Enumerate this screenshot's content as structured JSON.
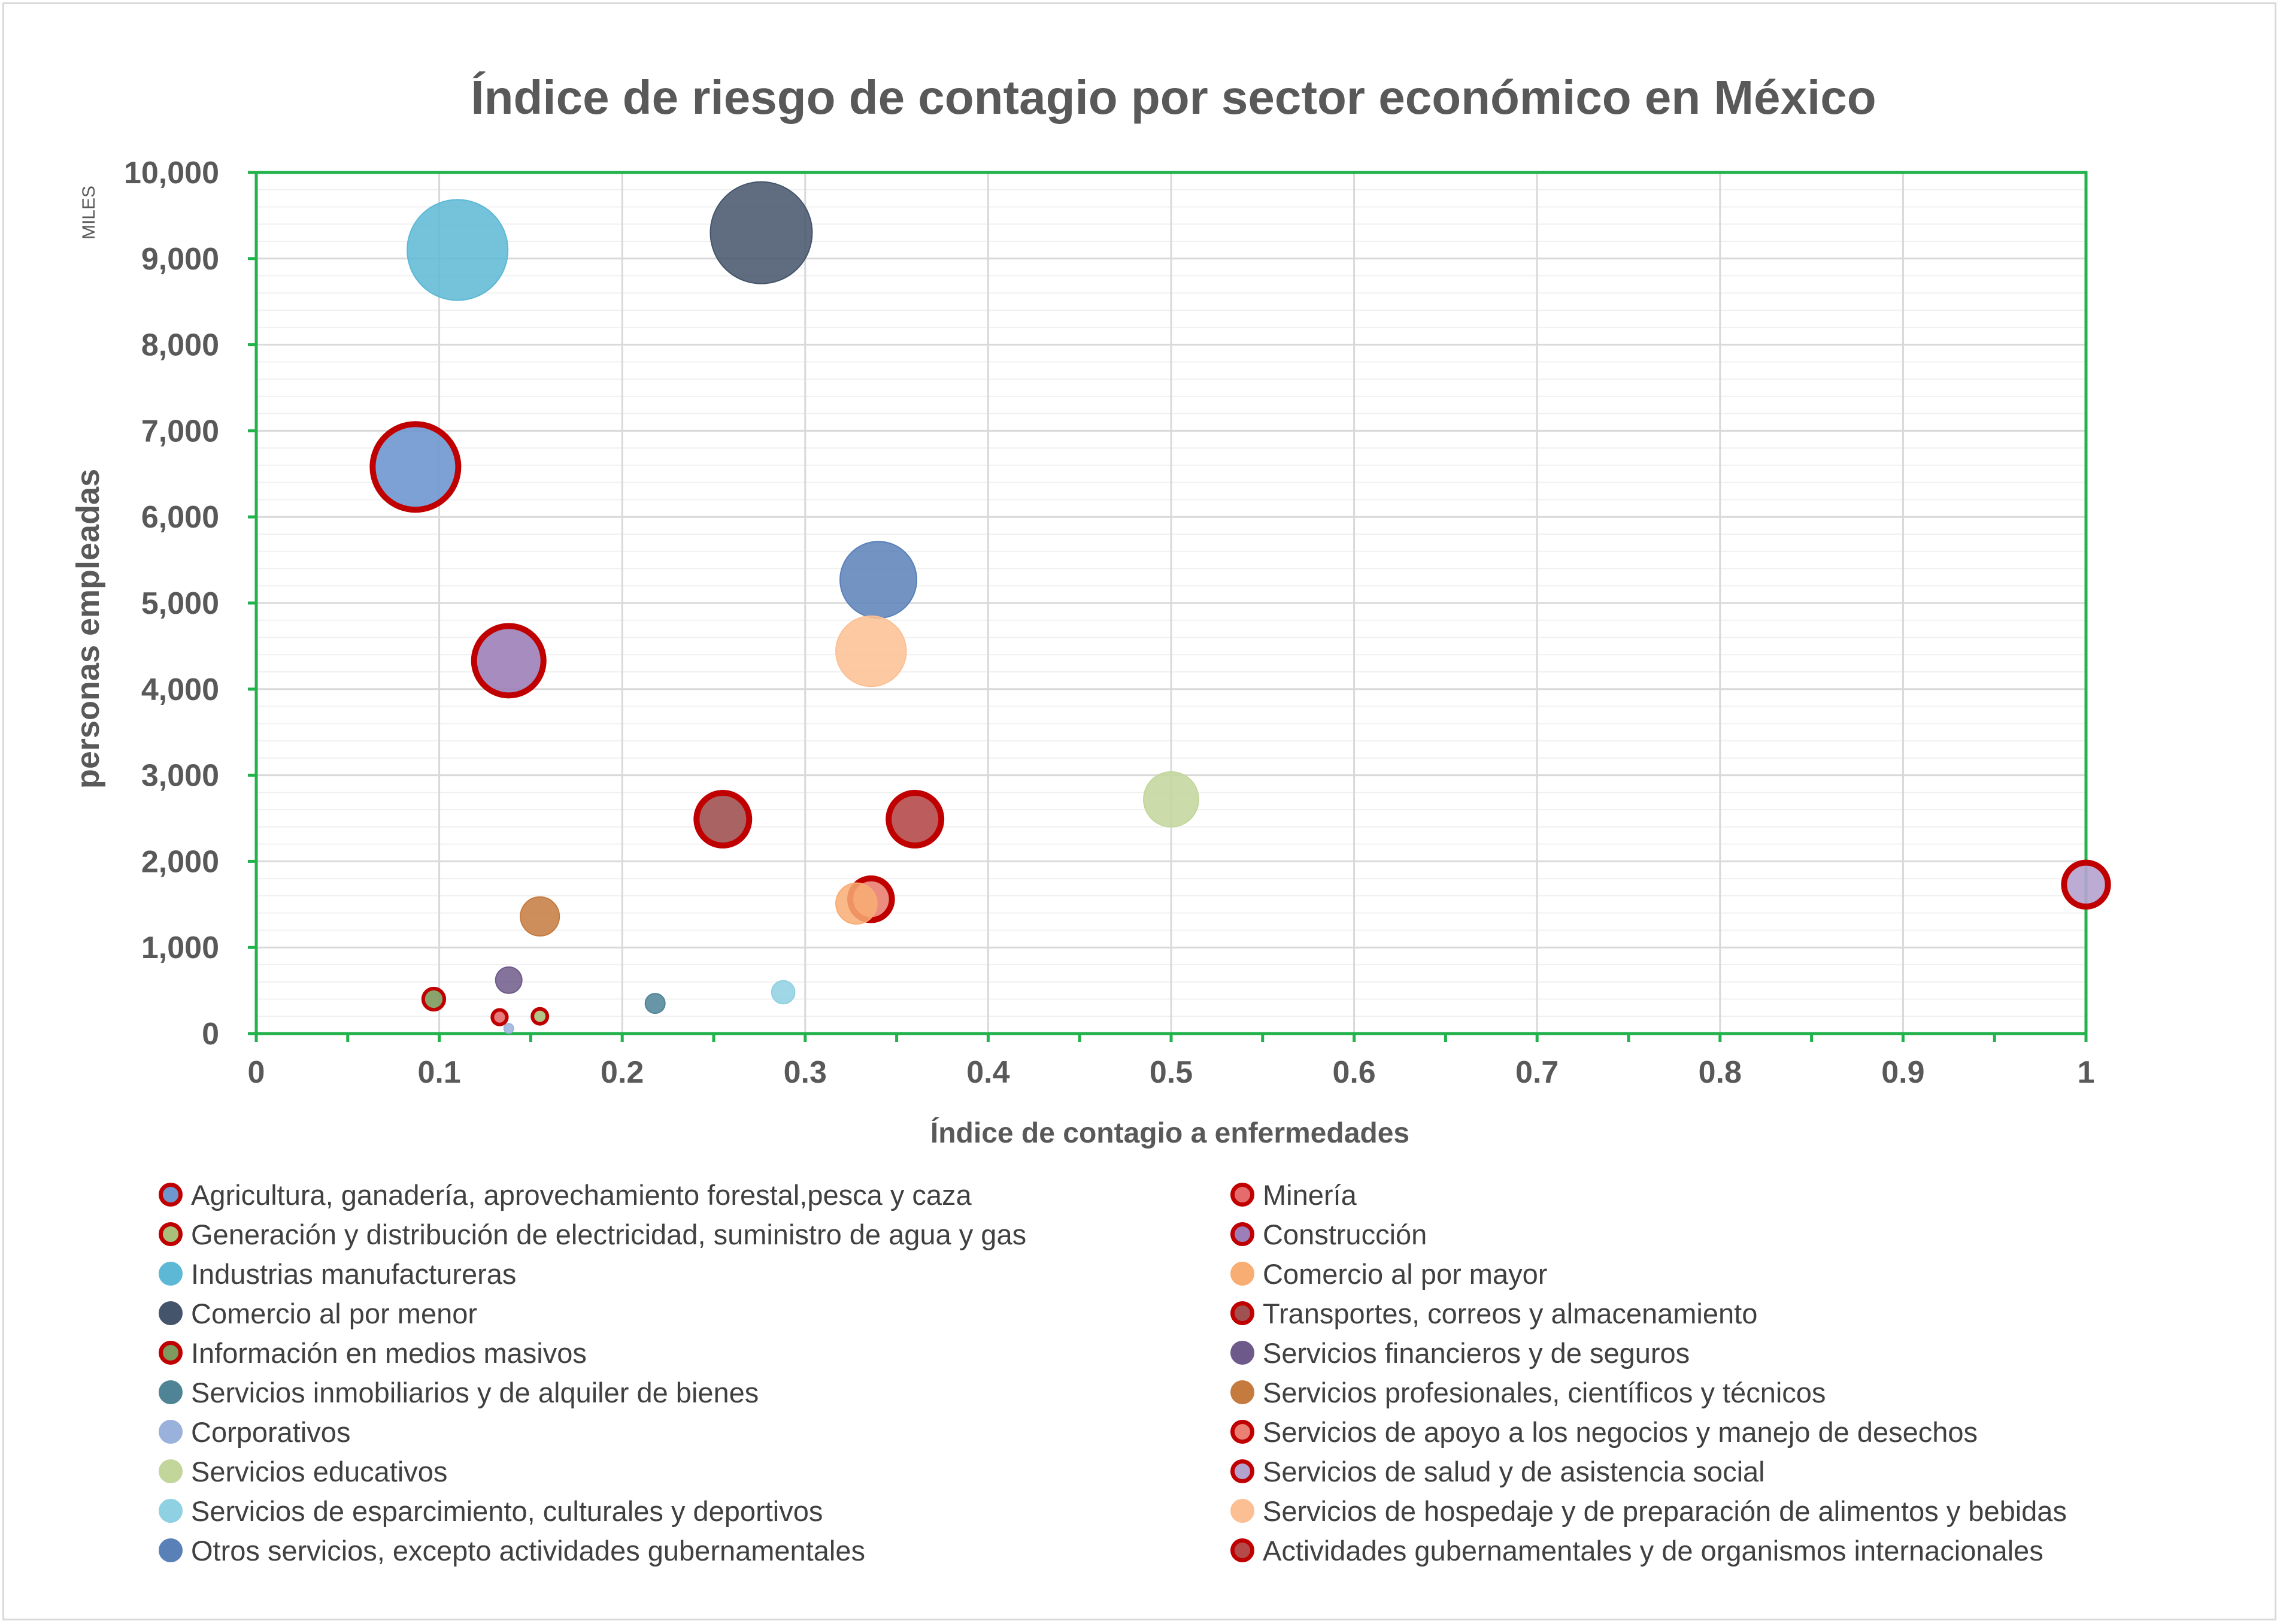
{
  "chart_data": {
    "type": "bubble",
    "title": "Índice de riesgo de contagio por sector económico en México",
    "xlabel": "Índice de contagio a enfermedades",
    "ylabel": "personas empleadas",
    "y_unit": "MILES",
    "xlim": [
      0,
      1
    ],
    "ylim": [
      0,
      10000
    ],
    "x_ticks": [
      "0",
      "0.1",
      "0.2",
      "0.3",
      "0.4",
      "0.5",
      "0.6",
      "0.7",
      "0.8",
      "0.9",
      "1"
    ],
    "y_ticks": [
      "0",
      "1,000",
      "2,000",
      "3,000",
      "4,000",
      "5,000",
      "6,000",
      "7,000",
      "8,000",
      "9,000",
      "10,000"
    ],
    "grid": true,
    "legend_position": "bottom",
    "series": [
      {
        "name": "Agricultura, ganadería, aprovechamiento forestal,pesca y caza",
        "x": 0.087,
        "y": 6580,
        "size": 6580,
        "color": "#6f97cf",
        "outline": true
      },
      {
        "name": "Minería",
        "x": 0.133,
        "y": 190,
        "size": 190,
        "color": "#e46c6c",
        "outline": true
      },
      {
        "name": "Generación y distribución de electricidad, suministro de agua y gas",
        "x": 0.155,
        "y": 200,
        "size": 200,
        "color": "#a9c07a",
        "outline": true
      },
      {
        "name": "Construcción",
        "x": 0.138,
        "y": 4330,
        "size": 4330,
        "color": "#9c7fb8",
        "outline": true
      },
      {
        "name": "Industrias manufactureras",
        "x": 0.11,
        "y": 9100,
        "size": 9100,
        "color": "#5cb8d5",
        "outline": false
      },
      {
        "name": "Comercio al por mayor",
        "x": 0.328,
        "y": 1510,
        "size": 1510,
        "color": "#f8ad73",
        "outline": false
      },
      {
        "name": "Comercio al por menor",
        "x": 0.276,
        "y": 9300,
        "size": 9300,
        "color": "#44546a",
        "outline": false
      },
      {
        "name": "Transportes, correos y almacenamiento",
        "x": 0.255,
        "y": 2490,
        "size": 2490,
        "color": "#a05252",
        "outline": true
      },
      {
        "name": "Información en medios masivos",
        "x": 0.097,
        "y": 400,
        "size": 400,
        "color": "#7e9a5e",
        "outline": true
      },
      {
        "name": "Servicios financieros y de seguros",
        "x": 0.138,
        "y": 620,
        "size": 620,
        "color": "#6e5a8a",
        "outline": false
      },
      {
        "name": "Servicios inmobiliarios y de alquiler de bienes",
        "x": 0.218,
        "y": 350,
        "size": 350,
        "color": "#4e8496",
        "outline": false
      },
      {
        "name": "Servicios profesionales, científicos y técnicos",
        "x": 0.155,
        "y": 1360,
        "size": 1360,
        "color": "#c57a3e",
        "outline": false
      },
      {
        "name": "Corporativos",
        "x": 0.138,
        "y": 60,
        "size": 60,
        "color": "#9ab2db",
        "outline": false
      },
      {
        "name": "Servicios de apoyo a los negocios y manejo de desechos",
        "x": 0.336,
        "y": 1560,
        "size": 1560,
        "color": "#ea7f73",
        "outline": true
      },
      {
        "name": "Servicios educativos",
        "x": 0.5,
        "y": 2720,
        "size": 2720,
        "color": "#c2d69b",
        "outline": false
      },
      {
        "name": "Servicios de salud y de asistencia social",
        "x": 1.0,
        "y": 1730,
        "size": 1730,
        "color": "#b5a3cf",
        "outline": true
      },
      {
        "name": "Servicios de esparcimiento, culturales y deportivos",
        "x": 0.288,
        "y": 480,
        "size": 480,
        "color": "#8fd0e3",
        "outline": false
      },
      {
        "name": "Servicios de hospedaje y de preparación  de alimentos y bebidas",
        "x": 0.336,
        "y": 4440,
        "size": 4440,
        "color": "#fbbf93",
        "outline": false
      },
      {
        "name": "Otros servicios, excepto actividades gubernamentales",
        "x": 0.34,
        "y": 5270,
        "size": 5270,
        "color": "#5a80b8",
        "outline": false
      },
      {
        "name": "Actividades gubernamentales y de organismos internacionales",
        "x": 0.36,
        "y": 2490,
        "size": 2490,
        "color": "#b54a4a",
        "outline": true
      }
    ]
  }
}
